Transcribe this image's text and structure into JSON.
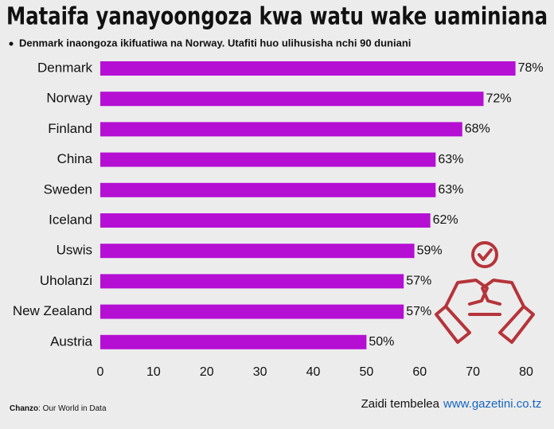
{
  "chart_data": {
    "type": "bar",
    "orientation": "horizontal",
    "title": "Mataifa yanayoongoza kwa watu wake uaminiana",
    "subtitle": "Denmark inaongoza ikifuatiwa na Norway. Utafiti huo ulihusisha nchi 90 duniani",
    "categories": [
      "Denmark",
      "Norway",
      "Finland",
      "China",
      "Sweden",
      "Iceland",
      "Uswis",
      "Uholanzi",
      "New Zealand",
      "Austria"
    ],
    "values": [
      78,
      72,
      68,
      63,
      63,
      62,
      59,
      57,
      57,
      50
    ],
    "value_labels": [
      "78%",
      "72%",
      "68%",
      "63%",
      "63%",
      "62%",
      "59%",
      "57%",
      "57%",
      "50%"
    ],
    "color": "#b50fd4",
    "xlim": [
      0,
      80
    ],
    "xticks": [
      0,
      10,
      20,
      30,
      40,
      50,
      60,
      70,
      80
    ],
    "grid": false
  },
  "footer": {
    "source_label": "Chanzo",
    "source_text": ": Our World in Data",
    "visit_text": "Zaidi tembelea",
    "website": "www.gazetini.co.tz"
  }
}
